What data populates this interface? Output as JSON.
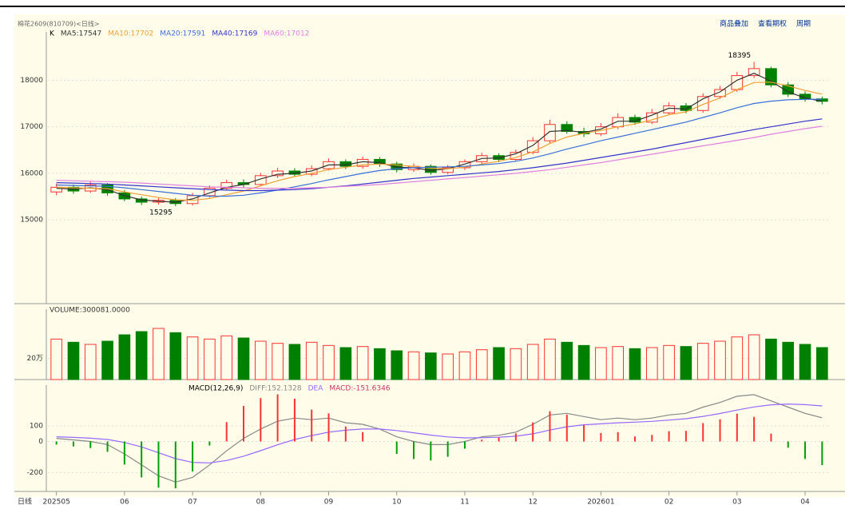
{
  "chart_data": [
    {
      "type": "candlestick",
      "title": "棉花2609(810709)<日线>",
      "panel_label": "K",
      "categories": [
        "202505",
        null,
        null,
        null,
        "06",
        null,
        null,
        null,
        "07",
        null,
        null,
        null,
        "08",
        null,
        null,
        null,
        "09",
        null,
        null,
        null,
        "10",
        null,
        null,
        null,
        "11",
        null,
        null,
        null,
        "12",
        null,
        null,
        null,
        "202601",
        null,
        null,
        null,
        "02",
        null,
        null,
        null,
        "03",
        null,
        null,
        null,
        "04",
        null
      ],
      "open": [
        15600,
        15700,
        15620,
        15750,
        15580,
        15450,
        15380,
        15420,
        15350,
        15520,
        15680,
        15800,
        15760,
        15950,
        16050,
        15980,
        16100,
        16250,
        16150,
        16300,
        16200,
        16080,
        16150,
        16020,
        16120,
        16250,
        16380,
        16300,
        16450,
        16700,
        17050,
        16900,
        16850,
        17000,
        17200,
        17100,
        17300,
        17450,
        17350,
        17650,
        17800,
        18100,
        18250,
        17900,
        17700,
        17600
      ],
      "high": [
        15780,
        15760,
        15820,
        15790,
        15640,
        15500,
        15480,
        15470,
        15580,
        15740,
        15860,
        15870,
        16010,
        16120,
        16110,
        16170,
        16320,
        16300,
        16360,
        16350,
        16250,
        16210,
        16190,
        16180,
        16300,
        16440,
        16430,
        16510,
        16780,
        17150,
        17120,
        16980,
        17080,
        17290,
        17260,
        17380,
        17530,
        17510,
        17720,
        17880,
        18180,
        18395,
        18290,
        17960,
        17760,
        17650
      ],
      "low": [
        15530,
        15560,
        15580,
        15520,
        15400,
        15320,
        15330,
        15295,
        15310,
        15480,
        15630,
        15700,
        15720,
        15900,
        15920,
        15940,
        16060,
        16090,
        16100,
        16140,
        16020,
        16030,
        15970,
        15980,
        16070,
        16200,
        16240,
        16260,
        16410,
        16650,
        16850,
        16780,
        16800,
        16950,
        17040,
        17060,
        17250,
        17290,
        17300,
        17600,
        17750,
        18050,
        17850,
        17640,
        17540,
        17480
      ],
      "close": [
        15700,
        15620,
        15750,
        15580,
        15450,
        15380,
        15420,
        15350,
        15520,
        15680,
        15800,
        15760,
        15950,
        16050,
        15980,
        16100,
        16250,
        16150,
        16300,
        16200,
        16080,
        16150,
        16020,
        16120,
        16250,
        16380,
        16300,
        16450,
        16700,
        17050,
        16900,
        16850,
        17000,
        17200,
        17100,
        17300,
        17450,
        17350,
        17650,
        17800,
        18100,
        18250,
        17900,
        17700,
        17600,
        17547
      ],
      "up_color": "#ff3232",
      "down_color": "#008000",
      "series": [
        {
          "name": "MA5:17547",
          "color": "#333333",
          "values": [
            15680,
            15660,
            15690,
            15650,
            15520,
            15430,
            15400,
            15380,
            15450,
            15580,
            15700,
            15760,
            15880,
            15980,
            16000,
            16050,
            16180,
            16180,
            16250,
            16230,
            16130,
            16120,
            16060,
            16100,
            16200,
            16320,
            16330,
            16420,
            16600,
            16900,
            16920,
            16880,
            16950,
            17120,
            17120,
            17250,
            17400,
            17380,
            17600,
            17750,
            18000,
            18150,
            17980,
            17750,
            17620,
            17547
          ]
        },
        {
          "name": "MA10:17702",
          "color": "#f0a030",
          "values": [
            15700,
            15690,
            15680,
            15670,
            15600,
            15540,
            15480,
            15430,
            15420,
            15460,
            15540,
            15620,
            15730,
            15840,
            15930,
            16000,
            16080,
            16130,
            16180,
            16200,
            16180,
            16150,
            16110,
            16100,
            16130,
            16200,
            16260,
            16340,
            16460,
            16640,
            16780,
            16860,
            16920,
            17000,
            17060,
            17150,
            17260,
            17320,
            17480,
            17620,
            17800,
            17950,
            17960,
            17880,
            17780,
            17702
          ]
        },
        {
          "name": "MA20:17591",
          "color": "#3a6fd8",
          "values": [
            15750,
            15740,
            15730,
            15720,
            15690,
            15650,
            15610,
            15570,
            15530,
            15510,
            15510,
            15530,
            15580,
            15640,
            15710,
            15780,
            15860,
            15930,
            16000,
            16060,
            16100,
            16120,
            16130,
            16140,
            16150,
            16180,
            16210,
            16260,
            16330,
            16420,
            16520,
            16610,
            16700,
            16780,
            16860,
            16940,
            17020,
            17100,
            17200,
            17300,
            17410,
            17500,
            17550,
            17580,
            17590,
            17591
          ]
        },
        {
          "name": "MA40:17169",
          "color": "#3333cc",
          "values": [
            15800,
            15790,
            15780,
            15770,
            15750,
            15730,
            15710,
            15690,
            15670,
            15650,
            15640,
            15630,
            15630,
            15640,
            15650,
            15670,
            15700,
            15730,
            15770,
            15810,
            15850,
            15890,
            15920,
            15950,
            15980,
            16010,
            16040,
            16080,
            16120,
            16170,
            16220,
            16280,
            16340,
            16400,
            16460,
            16520,
            16590,
            16660,
            16730,
            16800,
            16870,
            16940,
            17000,
            17060,
            17120,
            17169
          ]
        },
        {
          "name": "MA60:17012",
          "color": "#e080e0",
          "values": [
            15850,
            15840,
            15830,
            15820,
            15810,
            15790,
            15770,
            15750,
            15730,
            15710,
            15700,
            15690,
            15680,
            15680,
            15680,
            15690,
            15700,
            15720,
            15740,
            15760,
            15790,
            15820,
            15850,
            15880,
            15910,
            15940,
            15970,
            16000,
            16040,
            16080,
            16130,
            16180,
            16230,
            16290,
            16350,
            16410,
            16470,
            16530,
            16590,
            16650,
            16710,
            16770,
            16840,
            16900,
            16960,
            17012
          ]
        }
      ],
      "high_label": 18395,
      "low_label": 15295,
      "ylim": [
        13200,
        18900
      ],
      "yticks": [
        15000,
        16000,
        17000,
        18000
      ],
      "grid": true
    },
    {
      "type": "volume",
      "series": [
        {
          "name": "VOLUME:300081.0000",
          "values": [
            380000,
            350000,
            330000,
            360000,
            420000,
            450000,
            480000,
            440000,
            400000,
            380000,
            410000,
            390000,
            360000,
            340000,
            330000,
            350000,
            320000,
            300000,
            310000,
            290000,
            270000,
            260000,
            250000,
            240000,
            260000,
            280000,
            300000,
            290000,
            330000,
            380000,
            350000,
            320000,
            300000,
            310000,
            290000,
            300000,
            320000,
            310000,
            340000,
            360000,
            400000,
            420000,
            380000,
            350000,
            330000,
            300081
          ]
        }
      ],
      "ylim": [
        0,
        600000
      ],
      "yticks": [
        {
          "value": 200000,
          "label": "20万"
        }
      ]
    },
    {
      "type": "macd",
      "title": "MACD(12,26,9)",
      "series": [
        {
          "name": "DIFF:152.1328",
          "color": "#888888",
          "values": [
            20,
            10,
            0,
            -20,
            -80,
            -150,
            -220,
            -260,
            -230,
            -150,
            -60,
            20,
            80,
            130,
            150,
            140,
            150,
            120,
            110,
            80,
            30,
            0,
            -20,
            -20,
            0,
            30,
            40,
            60,
            110,
            170,
            180,
            160,
            140,
            150,
            140,
            150,
            170,
            180,
            220,
            250,
            290,
            300,
            260,
            220,
            180,
            152.1328
          ]
        },
        {
          "name": "DEA",
          "color": "#9966ff",
          "values": [
            30,
            26,
            21,
            13,
            -6,
            -35,
            -72,
            -110,
            -134,
            -137,
            -122,
            -94,
            -59,
            -21,
            13,
            38,
            60,
            72,
            80,
            80,
            70,
            56,
            41,
            29,
            23,
            24,
            27,
            34,
            49,
            73,
            94,
            107,
            113,
            120,
            124,
            129,
            137,
            146,
            161,
            179,
            201,
            221,
            235,
            240,
            236,
            227.9501
          ]
        },
        {
          "name": "MACD:-151.6346",
          "color": "#cc3366",
          "values": [
            -20,
            -32,
            -42,
            -66,
            -148,
            -230,
            -296,
            -300,
            -192,
            -26,
            124,
            228,
            278,
            302,
            274,
            204,
            180,
            96,
            60,
            0,
            -80,
            -112,
            -122,
            -98,
            -46,
            12,
            26,
            52,
            122,
            194,
            172,
            106,
            54,
            60,
            32,
            42,
            66,
            68,
            118,
            142,
            178,
            158,
            50,
            -40,
            -112,
            -151.6346
          ]
        }
      ],
      "ylim": [
        -320,
        320
      ],
      "yticks": [
        100,
        0,
        -200
      ]
    }
  ],
  "toolbar": [
    "商品叠加",
    "查看期权",
    "周期"
  ],
  "period_label": "日线"
}
